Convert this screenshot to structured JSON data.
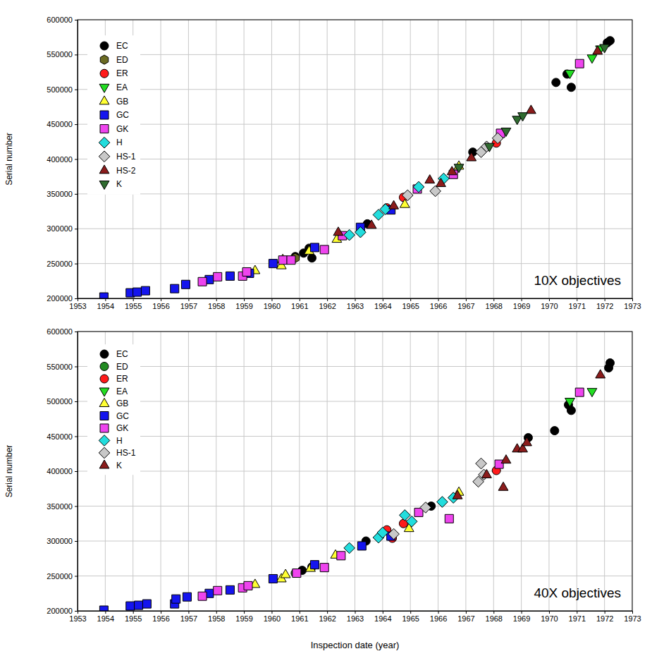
{
  "chart_data": [
    {
      "type": "scatter",
      "annotation": "10X objectives",
      "y_label": "Serial number",
      "xlim": [
        1953,
        1973
      ],
      "xticks": [
        1953,
        1954,
        1955,
        1956,
        1957,
        1958,
        1959,
        1960,
        1961,
        1962,
        1963,
        1964,
        1965,
        1966,
        1967,
        1968,
        1969,
        1970,
        1971,
        1972,
        1973
      ],
      "ylim": [
        200000,
        600000
      ],
      "yticks": [
        200000,
        250000,
        300000,
        350000,
        400000,
        450000,
        500000,
        550000,
        600000
      ],
      "grid": true,
      "legend": "upper left",
      "series": [
        {
          "name": "EC",
          "color": "#000000",
          "marker": "circle",
          "x": [
            1960.85,
            1961.15,
            1961.35,
            1961.45,
            1963.45,
            1967.25,
            1970.25,
            1970.65,
            1970.8,
            1972.1,
            1972.2
          ],
          "values": [
            260000,
            265000,
            272000,
            258000,
            307000,
            410000,
            510000,
            522000,
            503000,
            567000,
            570000
          ]
        },
        {
          "name": "ED",
          "color": "#6b6b23",
          "marker": "hexagon",
          "x": [
            1960.85
          ],
          "values": [
            258000
          ]
        },
        {
          "name": "ER",
          "color": "#ff1a1a",
          "marker": "circle",
          "x": [
            1964.15,
            1964.75,
            1968.1
          ],
          "values": [
            330000,
            345000,
            423000
          ]
        },
        {
          "name": "EA",
          "color": "#22dd22",
          "marker": "triangle-down",
          "x": [
            1970.75,
            1971.55,
            1971.85
          ],
          "values": [
            523000,
            545000,
            558000
          ]
        },
        {
          "name": "GB",
          "color": "#ffff33",
          "marker": "triangle-up",
          "x": [
            1959.4,
            1960.35,
            1960.4,
            1961.35,
            1962.35,
            1964.8,
            1966.75
          ],
          "values": [
            240000,
            247000,
            256000,
            268000,
            285000,
            335000,
            390000
          ]
        },
        {
          "name": "GC",
          "color": "#1515ee",
          "marker": "square",
          "x": [
            1953.95,
            1954.9,
            1955.15,
            1955.45,
            1956.5,
            1956.9,
            1957.75,
            1958.5,
            1959.2,
            1960.05,
            1961.55,
            1963.2,
            1964.3
          ],
          "values": [
            202000,
            208000,
            209000,
            211000,
            214000,
            220000,
            227000,
            232000,
            236000,
            250000,
            273000,
            302000,
            327000
          ]
        },
        {
          "name": "GK",
          "color": "#ee44ee",
          "marker": "square",
          "x": [
            1957.5,
            1958.05,
            1958.95,
            1959.1,
            1960.4,
            1960.7,
            1961.9,
            1962.55,
            1965.25,
            1966.55,
            1968.25,
            1971.1
          ],
          "values": [
            224000,
            231000,
            232000,
            238000,
            255000,
            255000,
            270000,
            290000,
            357000,
            378000,
            437000,
            537000
          ]
        },
        {
          "name": "H",
          "color": "#22dddd",
          "marker": "diamond",
          "x": [
            1962.8,
            1963.2,
            1963.85,
            1964.1,
            1965.3,
            1966.2
          ],
          "values": [
            291000,
            295000,
            320000,
            328000,
            360000,
            372000
          ]
        },
        {
          "name": "HS-1",
          "color": "#c8c8c8",
          "marker": "diamond",
          "x": [
            1964.9,
            1965.9,
            1967.55,
            1967.75,
            1968.15
          ],
          "values": [
            348000,
            354000,
            410000,
            418000,
            430000
          ]
        },
        {
          "name": "HS-2",
          "color": "#8b1c1c",
          "marker": "triangle-up",
          "x": [
            1962.4,
            1963.6,
            1964.4,
            1965.7,
            1966.1,
            1966.5,
            1967.2,
            1969.35,
            1971.75
          ],
          "values": [
            295000,
            305000,
            333000,
            370000,
            365000,
            382000,
            402000,
            470000,
            555000
          ]
        },
        {
          "name": "K",
          "color": "#2f6b2f",
          "marker": "triangle-down",
          "x": [
            1966.75,
            1967.85,
            1968.45,
            1968.85,
            1969.05,
            1972.0
          ],
          "values": [
            388000,
            418000,
            440000,
            457000,
            462000,
            560000
          ]
        }
      ]
    },
    {
      "type": "scatter",
      "annotation": "40X objectives",
      "y_label": "Serial number",
      "x_label": "Inspection date (year)",
      "xlim": [
        1953,
        1973
      ],
      "xticks": [
        1953,
        1954,
        1955,
        1956,
        1957,
        1958,
        1959,
        1960,
        1961,
        1962,
        1963,
        1964,
        1965,
        1966,
        1967,
        1968,
        1969,
        1970,
        1971,
        1972,
        1973
      ],
      "ylim": [
        200000,
        600000
      ],
      "yticks": [
        200000,
        250000,
        300000,
        350000,
        400000,
        450000,
        500000,
        550000,
        600000
      ],
      "grid": true,
      "legend": "upper left",
      "series": [
        {
          "name": "EC",
          "color": "#000000",
          "marker": "circle",
          "x": [
            1961.1,
            1961.45,
            1963.4,
            1965.75,
            1969.25,
            1970.2,
            1970.7,
            1970.8,
            1972.15,
            1972.2
          ],
          "values": [
            258000,
            263000,
            300000,
            350000,
            448000,
            458000,
            495000,
            487000,
            548000,
            555000
          ]
        },
        {
          "name": "ED",
          "color": "#228b22",
          "marker": "circle",
          "x": [
            1960.85
          ],
          "values": [
            254000
          ]
        },
        {
          "name": "ER",
          "color": "#ff1a1a",
          "marker": "circle",
          "x": [
            1964.15,
            1964.35,
            1964.75,
            1968.1
          ],
          "values": [
            316000,
            304000,
            325000,
            401000
          ]
        },
        {
          "name": "EA",
          "color": "#22dd22",
          "marker": "triangle-down",
          "x": [
            1970.75,
            1971.55
          ],
          "values": [
            500000,
            514000
          ]
        },
        {
          "name": "GB",
          "color": "#ffff33",
          "marker": "triangle-up",
          "x": [
            1959.4,
            1960.35,
            1960.5,
            1961.4,
            1962.3,
            1964.95,
            1966.75
          ],
          "values": [
            238000,
            246000,
            252000,
            261000,
            280000,
            318000,
            370000
          ]
        },
        {
          "name": "GC",
          "color": "#1515ee",
          "marker": "square",
          "x": [
            1953.95,
            1954.9,
            1955.2,
            1955.5,
            1956.5,
            1956.55,
            1956.95,
            1957.75,
            1958.5,
            1960.05,
            1961.55,
            1963.25,
            1964.3
          ],
          "values": [
            201000,
            207000,
            208000,
            210000,
            210000,
            217000,
            220000,
            225000,
            230000,
            246000,
            266000,
            293000,
            307000
          ]
        },
        {
          "name": "GK",
          "color": "#ee44ee",
          "marker": "square",
          "x": [
            1957.5,
            1958.05,
            1958.95,
            1959.15,
            1960.9,
            1961.9,
            1962.5,
            1965.3,
            1966.4,
            1968.2,
            1971.1
          ],
          "values": [
            221000,
            229000,
            233000,
            236000,
            254000,
            262000,
            279000,
            341000,
            332000,
            410000,
            513000
          ]
        },
        {
          "name": "H",
          "color": "#22dddd",
          "marker": "diamond",
          "x": [
            1962.8,
            1963.85,
            1964.0,
            1964.8,
            1965.05,
            1966.15,
            1966.55
          ],
          "values": [
            290000,
            305000,
            312000,
            337000,
            328000,
            356000,
            362000
          ]
        },
        {
          "name": "HS-1",
          "color": "#c8c8c8",
          "marker": "diamond",
          "x": [
            1964.4,
            1965.55,
            1967.45,
            1967.55,
            1967.65
          ],
          "values": [
            310000,
            348000,
            385000,
            411000,
            395000
          ]
        },
        {
          "name": "K",
          "color": "#8b1c1c",
          "marker": "triangle-up",
          "x": [
            1966.7,
            1967.75,
            1968.35,
            1968.45,
            1968.85,
            1969.05,
            1969.2,
            1971.85
          ],
          "values": [
            365000,
            395000,
            377000,
            416000,
            432000,
            432000,
            441000,
            538000
          ]
        }
      ]
    }
  ]
}
